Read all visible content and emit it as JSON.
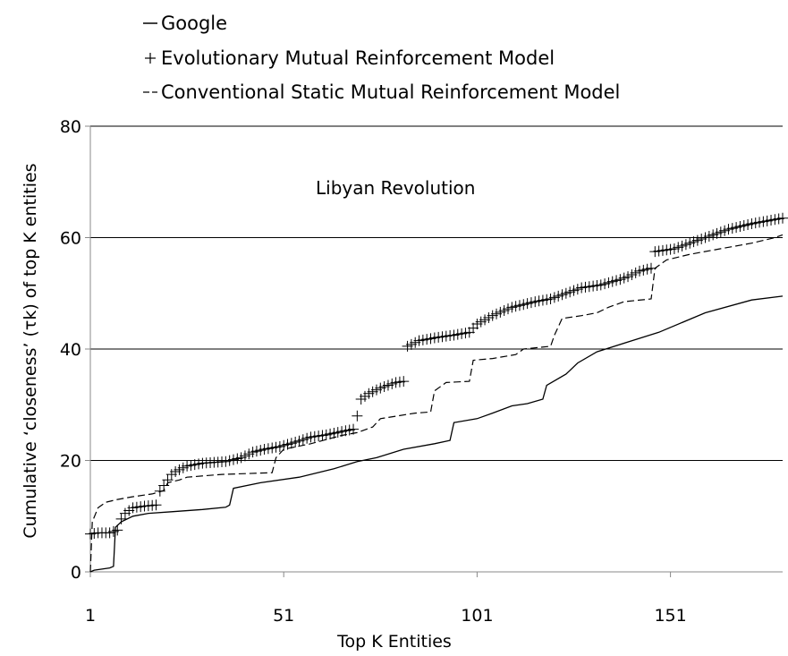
{
  "legend": {
    "google": "Google",
    "evolutionary": "Evolutionary Mutual Reinforcement Model",
    "static": "Conventional Static Mutual Reinforcement Model"
  },
  "chart_data": {
    "type": "line",
    "xlabel": "Top K Entities",
    "ylabel": "Cumulative ‘closeness’ (τk) of top K entities",
    "annotation": "Libyan Revolution",
    "xlim": [
      1,
      180
    ],
    "ylim": [
      0,
      80
    ],
    "xticks": [
      1,
      51,
      101,
      151
    ],
    "yticks": [
      0,
      20,
      40,
      60,
      80
    ],
    "grid": "horizontal",
    "legend_position": "top-left",
    "series": [
      {
        "name": "Google",
        "style": "solid",
        "points": [
          [
            1,
            0
          ],
          [
            2,
            0.3
          ],
          [
            4,
            0.5
          ],
          [
            6,
            0.7
          ],
          [
            7,
            1.0
          ],
          [
            7.5,
            8.0
          ],
          [
            9,
            9.0
          ],
          [
            12,
            10.0
          ],
          [
            16,
            10.5
          ],
          [
            22,
            10.8
          ],
          [
            30,
            11.2
          ],
          [
            36,
            11.6
          ],
          [
            37,
            12.0
          ],
          [
            38,
            15.0
          ],
          [
            45,
            16.0
          ],
          [
            55,
            17.0
          ],
          [
            64,
            18.5
          ],
          [
            70,
            19.8
          ],
          [
            75,
            20.5
          ],
          [
            82,
            22.0
          ],
          [
            90,
            23.0
          ],
          [
            94,
            23.6
          ],
          [
            95,
            26.8
          ],
          [
            101,
            27.5
          ],
          [
            105,
            28.5
          ],
          [
            110,
            29.8
          ],
          [
            114,
            30.2
          ],
          [
            118,
            31.0
          ],
          [
            119,
            33.5
          ],
          [
            124,
            35.5
          ],
          [
            127,
            37.5
          ],
          [
            132,
            39.5
          ],
          [
            141,
            41.5
          ],
          [
            148,
            43.0
          ],
          [
            160,
            46.5
          ],
          [
            172,
            48.8
          ],
          [
            180,
            49.5
          ]
        ]
      },
      {
        "name": "Evolutionary Mutual Reinforcement Model",
        "style": "plus",
        "points": [
          [
            1,
            6.8
          ],
          [
            3,
            7.0
          ],
          [
            6,
            7.0
          ],
          [
            8,
            7.5
          ],
          [
            9,
            9.5
          ],
          [
            10,
            10.5
          ],
          [
            12,
            11.5
          ],
          [
            15,
            11.8
          ],
          [
            18,
            12.0
          ],
          [
            19,
            14.5
          ],
          [
            20,
            15.5
          ],
          [
            21,
            16.5
          ],
          [
            22,
            17.5
          ],
          [
            23,
            18.0
          ],
          [
            26,
            19.0
          ],
          [
            30,
            19.5
          ],
          [
            36,
            19.8
          ],
          [
            40,
            20.5
          ],
          [
            43,
            21.5
          ],
          [
            46,
            22.0
          ],
          [
            50,
            22.5
          ],
          [
            55,
            23.5
          ],
          [
            58,
            24.2
          ],
          [
            62,
            24.6
          ],
          [
            66,
            25.2
          ],
          [
            69,
            25.6
          ],
          [
            70,
            28.0
          ],
          [
            71,
            31.0
          ],
          [
            73,
            32.0
          ],
          [
            76,
            33.0
          ],
          [
            80,
            34.0
          ],
          [
            82,
            34.2
          ],
          [
            83,
            40.5
          ],
          [
            86,
            41.5
          ],
          [
            90,
            42.0
          ],
          [
            95,
            42.5
          ],
          [
            99,
            43.0
          ],
          [
            101,
            44.5
          ],
          [
            105,
            46.0
          ],
          [
            110,
            47.5
          ],
          [
            116,
            48.5
          ],
          [
            120,
            49.0
          ],
          [
            124,
            50.0
          ],
          [
            128,
            51.0
          ],
          [
            133,
            51.5
          ],
          [
            138,
            52.5
          ],
          [
            140,
            53.0
          ],
          [
            143,
            54.0
          ],
          [
            146,
            54.5
          ],
          [
            147,
            57.5
          ],
          [
            152,
            58.0
          ],
          [
            156,
            59.0
          ],
          [
            160,
            60.0
          ],
          [
            166,
            61.5
          ],
          [
            172,
            62.5
          ],
          [
            176,
            63.0
          ],
          [
            180,
            63.5
          ]
        ]
      },
      {
        "name": "Conventional Static Mutual Reinforcement Model",
        "style": "dashed",
        "points": [
          [
            1,
            0
          ],
          [
            1.5,
            9.0
          ],
          [
            3,
            11.5
          ],
          [
            5,
            12.5
          ],
          [
            8,
            13.0
          ],
          [
            12,
            13.5
          ],
          [
            17,
            14.0
          ],
          [
            20,
            14.6
          ],
          [
            21,
            16.0
          ],
          [
            24,
            16.5
          ],
          [
            26,
            17.0
          ],
          [
            35,
            17.5
          ],
          [
            48,
            17.8
          ],
          [
            49,
            20.5
          ],
          [
            51,
            22.0
          ],
          [
            58,
            23.0
          ],
          [
            66,
            24.5
          ],
          [
            70,
            25.0
          ],
          [
            74,
            26.0
          ],
          [
            76,
            27.5
          ],
          [
            85,
            28.5
          ],
          [
            89,
            28.7
          ],
          [
            90,
            32.5
          ],
          [
            93,
            34.0
          ],
          [
            99,
            34.2
          ],
          [
            100,
            38.0
          ],
          [
            105,
            38.3
          ],
          [
            111,
            39.0
          ],
          [
            113,
            40.0
          ],
          [
            120,
            40.5
          ],
          [
            121,
            42.5
          ],
          [
            123,
            45.5
          ],
          [
            128,
            46.0
          ],
          [
            132,
            46.5
          ],
          [
            135,
            47.5
          ],
          [
            139,
            48.5
          ],
          [
            146,
            49.0
          ],
          [
            147,
            54.5
          ],
          [
            150,
            56.0
          ],
          [
            156,
            57.0
          ],
          [
            164,
            58.0
          ],
          [
            172,
            59.0
          ],
          [
            178,
            60.0
          ],
          [
            180,
            60.5
          ]
        ]
      }
    ]
  }
}
